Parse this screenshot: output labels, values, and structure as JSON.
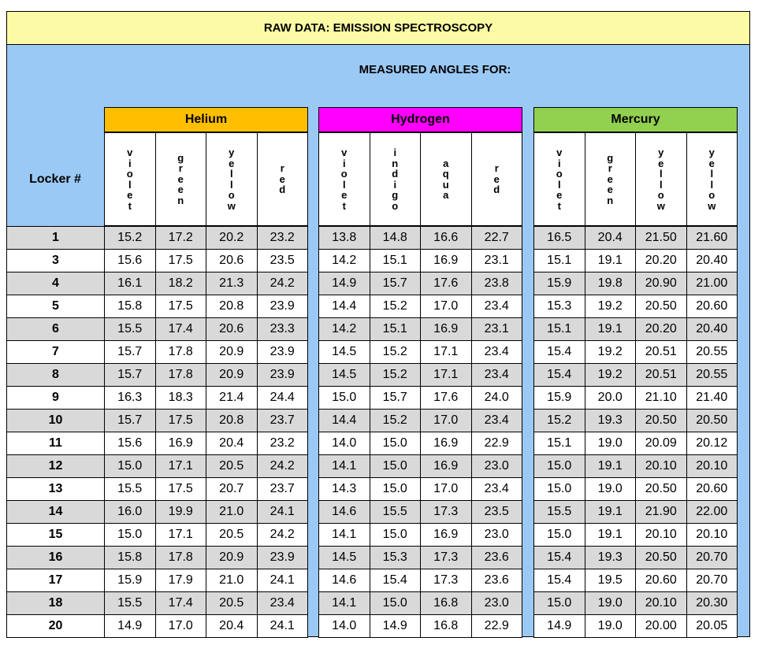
{
  "title": "RAW DATA:  EMISSION SPECTROSCOPY",
  "subtitle": "MEASURED ANGLES FOR:",
  "locker_header": "Locker #",
  "groups": [
    {
      "name": "Helium",
      "color": "#ffbf00",
      "columns": [
        "violet",
        "green",
        "yellow",
        "red"
      ]
    },
    {
      "name": "Hydrogen",
      "color": "#ff00ff",
      "columns": [
        "violet",
        "indigo",
        "aqua",
        "red"
      ]
    },
    {
      "name": "Mercury",
      "color": "#92d050",
      "columns": [
        "violet",
        "green",
        "yellow",
        "yellow"
      ]
    }
  ],
  "rows": [
    {
      "locker": "1",
      "values": [
        "15.2",
        "17.2",
        "20.2",
        "23.2",
        "13.8",
        "14.8",
        "16.6",
        "22.7",
        "16.5",
        "20.4",
        "21.50",
        "21.60"
      ]
    },
    {
      "locker": "3",
      "values": [
        "15.6",
        "17.5",
        "20.6",
        "23.5",
        "14.2",
        "15.1",
        "16.9",
        "23.1",
        "15.1",
        "19.1",
        "20.20",
        "20.40"
      ]
    },
    {
      "locker": "4",
      "values": [
        "16.1",
        "18.2",
        "21.3",
        "24.2",
        "14.9",
        "15.7",
        "17.6",
        "23.8",
        "15.9",
        "19.8",
        "20.90",
        "21.00"
      ]
    },
    {
      "locker": "5",
      "values": [
        "15.8",
        "17.5",
        "20.8",
        "23.9",
        "14.4",
        "15.2",
        "17.0",
        "23.4",
        "15.3",
        "19.2",
        "20.50",
        "20.60"
      ]
    },
    {
      "locker": "6",
      "values": [
        "15.5",
        "17.4",
        "20.6",
        "23.3",
        "14.2",
        "15.1",
        "16.9",
        "23.1",
        "15.1",
        "19.1",
        "20.20",
        "20.40"
      ]
    },
    {
      "locker": "7",
      "values": [
        "15.7",
        "17.8",
        "20.9",
        "23.9",
        "14.5",
        "15.2",
        "17.1",
        "23.4",
        "15.4",
        "19.2",
        "20.51",
        "20.55"
      ]
    },
    {
      "locker": "8",
      "values": [
        "15.7",
        "17.8",
        "20.9",
        "23.9",
        "14.5",
        "15.2",
        "17.1",
        "23.4",
        "15.4",
        "19.2",
        "20.51",
        "20.55"
      ]
    },
    {
      "locker": "9",
      "values": [
        "16.3",
        "18.3",
        "21.4",
        "24.4",
        "15.0",
        "15.7",
        "17.6",
        "24.0",
        "15.9",
        "20.0",
        "21.10",
        "21.40"
      ]
    },
    {
      "locker": "10",
      "values": [
        "15.7",
        "17.5",
        "20.8",
        "23.7",
        "14.4",
        "15.2",
        "17.0",
        "23.4",
        "15.2",
        "19.3",
        "20.50",
        "20.50"
      ]
    },
    {
      "locker": "11",
      "values": [
        "15.6",
        "16.9",
        "20.4",
        "23.2",
        "14.0",
        "15.0",
        "16.9",
        "22.9",
        "15.1",
        "19.0",
        "20.09",
        "20.12"
      ]
    },
    {
      "locker": "12",
      "values": [
        "15.0",
        "17.1",
        "20.5",
        "24.2",
        "14.1",
        "15.0",
        "16.9",
        "23.0",
        "15.0",
        "19.1",
        "20.10",
        "20.10"
      ]
    },
    {
      "locker": "13",
      "values": [
        "15.5",
        "17.5",
        "20.7",
        "23.7",
        "14.3",
        "15.0",
        "17.0",
        "23.4",
        "15.0",
        "19.0",
        "20.50",
        "20.60"
      ]
    },
    {
      "locker": "14",
      "values": [
        "16.0",
        "19.9",
        "21.0",
        "24.1",
        "14.6",
        "15.5",
        "17.3",
        "23.5",
        "15.5",
        "19.1",
        "21.90",
        "22.00"
      ]
    },
    {
      "locker": "15",
      "values": [
        "15.0",
        "17.1",
        "20.5",
        "24.2",
        "14.1",
        "15.0",
        "16.9",
        "23.0",
        "15.0",
        "19.1",
        "20.10",
        "20.10"
      ]
    },
    {
      "locker": "16",
      "values": [
        "15.8",
        "17.8",
        "20.9",
        "23.9",
        "14.5",
        "15.3",
        "17.3",
        "23.6",
        "15.4",
        "19.3",
        "20.50",
        "20.70"
      ]
    },
    {
      "locker": "17",
      "values": [
        "15.9",
        "17.9",
        "21.0",
        "24.1",
        "14.6",
        "15.4",
        "17.3",
        "23.6",
        "15.4",
        "19.5",
        "20.60",
        "20.70"
      ]
    },
    {
      "locker": "18",
      "values": [
        "15.5",
        "17.4",
        "20.5",
        "23.4",
        "14.1",
        "15.0",
        "16.8",
        "23.0",
        "15.0",
        "19.0",
        "20.10",
        "20.30"
      ]
    },
    {
      "locker": "20",
      "values": [
        "14.9",
        "17.0",
        "20.4",
        "24.1",
        "14.0",
        "14.9",
        "16.8",
        "22.9",
        "14.9",
        "19.0",
        "20.00",
        "20.05"
      ]
    }
  ]
}
